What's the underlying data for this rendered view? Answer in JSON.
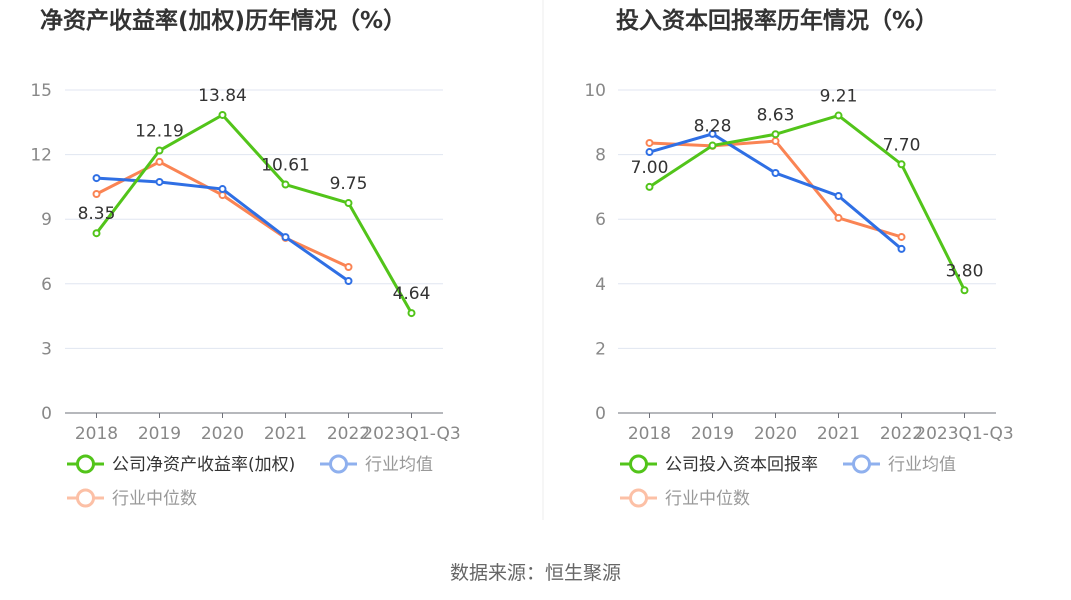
{
  "chart_data": [
    {
      "type": "line",
      "title": "净资产收益率(加权)历年情况（%）",
      "categories": [
        "2018",
        "2019",
        "2020",
        "2021",
        "2022",
        "2023Q1-Q3"
      ],
      "ylim": [
        0,
        15
      ],
      "yticks": [
        0,
        3,
        6,
        9,
        12,
        15
      ],
      "grid": true,
      "legend": "bottom",
      "series": [
        {
          "name": "公司净资产收益率(加权)",
          "color": "#52c41a",
          "values": [
            8.35,
            12.19,
            13.84,
            10.61,
            9.75,
            4.64
          ],
          "labels": true,
          "active": true
        },
        {
          "name": "行业均值",
          "color": "#2f6fe4",
          "legend_color": "#8fb0ee",
          "values": [
            10.91,
            10.73,
            10.4,
            8.17,
            6.13,
            null
          ],
          "active": false
        },
        {
          "name": "行业中位数",
          "color": "#fa8454",
          "legend_color": "#fcc0a6",
          "values": [
            10.17,
            11.66,
            10.12,
            8.13,
            6.78,
            null
          ],
          "active": false
        }
      ]
    },
    {
      "type": "line",
      "title": "投入资本回报率历年情况（%）",
      "categories": [
        "2018",
        "2019",
        "2020",
        "2021",
        "2022",
        "2023Q1-Q3"
      ],
      "ylim": [
        0,
        10
      ],
      "yticks": [
        0,
        2,
        4,
        6,
        8,
        10
      ],
      "grid": true,
      "legend": "bottom",
      "series": [
        {
          "name": "公司投入资本回报率",
          "color": "#52c41a",
          "values": [
            7.0,
            8.28,
            8.63,
            9.21,
            7.7,
            3.8
          ],
          "labels": true,
          "active": true
        },
        {
          "name": "行业均值",
          "color": "#2f6fe4",
          "legend_color": "#8fb0ee",
          "values": [
            8.08,
            8.64,
            7.43,
            6.72,
            5.08,
            null
          ],
          "active": false
        },
        {
          "name": "行业中位数",
          "color": "#fa8454",
          "legend_color": "#fcc0a6",
          "values": [
            8.36,
            8.27,
            8.42,
            6.04,
            5.45,
            null
          ],
          "active": false
        }
      ]
    }
  ],
  "source": "数据来源：恒生聚源"
}
